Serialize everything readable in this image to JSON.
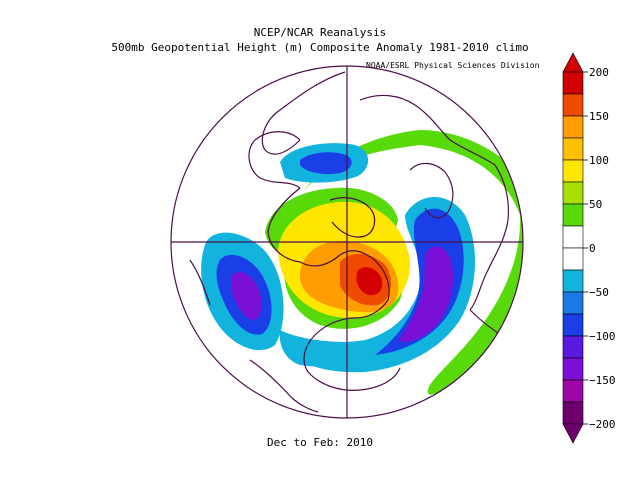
{
  "header": {
    "title_line1": "NCEP/NCAR Reanalysis",
    "title_line2": "500mb Geopotential Height (m) Composite Anomaly 1981-2010 climo",
    "credit": "NOAA/ESRL Physical Sciences Division"
  },
  "footer": {
    "period": "Dec to Feb: 2010"
  },
  "colorbar": {
    "ticks": [
      "200",
      "150",
      "100",
      "50",
      "0",
      "−50",
      "−100",
      "−150",
      "−200"
    ],
    "colors": {
      "max": "#d20000",
      "c175": "#f04a00",
      "c125": "#ff9c00",
      "c75": "#ffe600",
      "c25": "#58d90a",
      "zero": "#ffffff",
      "cn25": "#12b4de",
      "cn75": "#1a3fe6",
      "cn125": "#7a10d6",
      "cn175": "#a006a6",
      "min": "#6e006e"
    }
  },
  "map": {
    "projection": "north polar stereographic",
    "coast_color": "#4b0f4b"
  }
}
